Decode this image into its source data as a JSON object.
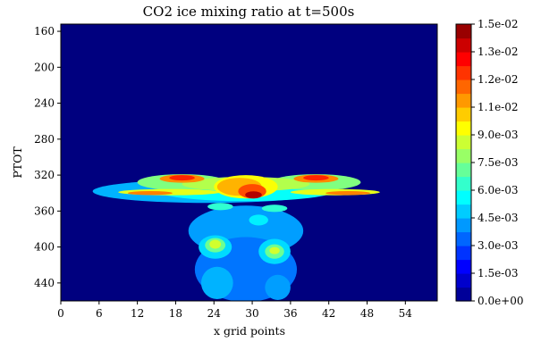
{
  "chart_data": {
    "type": "heatmap",
    "title": "CO2 ice mixing ratio at t=500s",
    "xlabel": "x grid points",
    "ylabel": "PTOT",
    "xlim": [
      0,
      59
    ],
    "ylim": [
      460,
      152
    ],
    "x_ticks": [
      "0",
      "6",
      "12",
      "18",
      "24",
      "30",
      "36",
      "42",
      "48",
      "54"
    ],
    "y_ticks": [
      "160",
      "200",
      "240",
      "280",
      "320",
      "360",
      "400",
      "440"
    ],
    "colorbar": {
      "min": 0.0,
      "max": 0.015,
      "levels": 20,
      "colormap": "jet",
      "ticks": [
        "1.5e-02",
        "1.3e-02",
        "1.2e-02",
        "1.1e-02",
        "9.0e-03",
        "7.5e-03",
        "6.0e-03",
        "4.5e-03",
        "3.0e-03",
        "1.5e-03",
        "0.0e+00"
      ]
    },
    "features": [
      {
        "name": "anvil cloud layer",
        "x_range": [
          12,
          47
        ],
        "p_range": [
          310,
          355
        ],
        "peak": 0.0125
      },
      {
        "name": "central core",
        "x_range": [
          26,
          34
        ],
        "p_range": [
          315,
          360
        ],
        "peak": 0.0145
      },
      {
        "name": "left column",
        "x_range": [
          22,
          27
        ],
        "p_range": [
          360,
          460
        ],
        "peak": 0.0085
      },
      {
        "name": "right column",
        "x_range": [
          32,
          37
        ],
        "p_range": [
          385,
          430
        ],
        "peak": 0.0085
      }
    ]
  }
}
